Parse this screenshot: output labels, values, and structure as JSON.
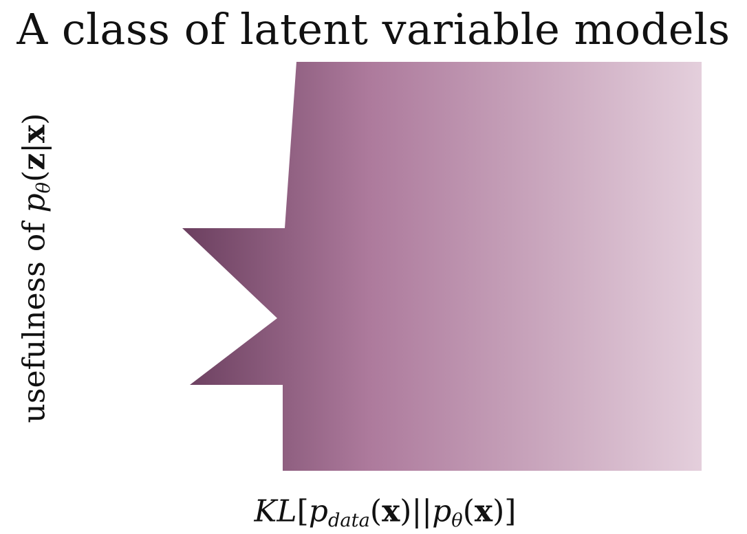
{
  "title": "A class of latent variable models",
  "y_axis": {
    "prefix": "usefulness of ",
    "p": "p",
    "sub": "θ",
    "open": "(",
    "z": "z",
    "bar": "|",
    "x": "x",
    "close": ")"
  },
  "x_axis": {
    "kl": "KL",
    "lb": "[",
    "p1": "p",
    "sub1": "data",
    "o1": "(",
    "x1": "x",
    "c1": ")",
    "sep": "||",
    "p2": "p",
    "sub2": "θ",
    "o2": "(",
    "x2": "x",
    "c2": ")",
    "rb": "]"
  },
  "colors": {
    "gradient_dark": "#6b3f5f",
    "gradient_mid": "#ad7a9c",
    "gradient_light": "#e4cfdc"
  }
}
